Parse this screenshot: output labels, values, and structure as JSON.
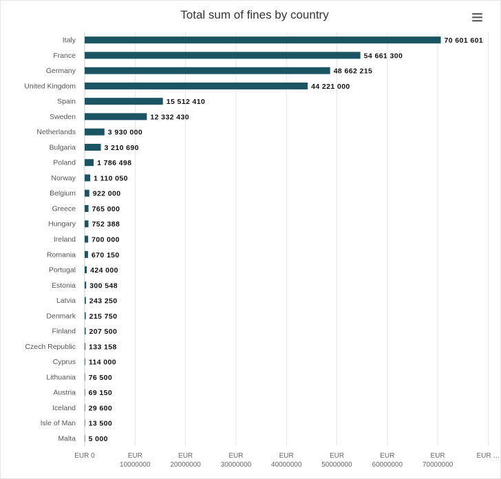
{
  "chart_data": {
    "type": "bar",
    "orientation": "horizontal",
    "title": "Total sum of fines by country",
    "categories": [
      "Italy",
      "France",
      "Germany",
      "United Kingdom",
      "Spain",
      "Sweden",
      "Netherlands",
      "Bulgaria",
      "Poland",
      "Norway",
      "Belgium",
      "Greece",
      "Hungary",
      "Ireland",
      "Romania",
      "Portugal",
      "Estonia",
      "Latvia",
      "Denmark",
      "Finland",
      "Czech Republic",
      "Cyprus",
      "Lithuania",
      "Austria",
      "Iceland",
      "Isle of Man",
      "Malta"
    ],
    "values": [
      70601601,
      54661300,
      48662215,
      44221000,
      15512410,
      12332430,
      3930000,
      3210690,
      1786498,
      1110050,
      922000,
      765000,
      752388,
      700000,
      670150,
      424000,
      300548,
      243250,
      215750,
      207500,
      133158,
      114000,
      76500,
      69150,
      29600,
      13500,
      5000
    ],
    "value_labels": [
      "70 601 601",
      "54 661 300",
      "48 662 215",
      "44 221 000",
      "15 512 410",
      "12 332 430",
      "3 930 000",
      "3 210 690",
      "1 786 498",
      "1 110 050",
      "922 000",
      "765 000",
      "752 388",
      "700 000",
      "670 150",
      "424 000",
      "300 548",
      "243 250",
      "215 750",
      "207 500",
      "133 158",
      "114 000",
      "76 500",
      "69 150",
      "29 600",
      "13 500",
      "5 000"
    ],
    "x_ticks": [
      {
        "value": 0,
        "line1": "EUR 0",
        "line2": ""
      },
      {
        "value": 10000000,
        "line1": "EUR",
        "line2": "10000000"
      },
      {
        "value": 20000000,
        "line1": "EUR",
        "line2": "20000000"
      },
      {
        "value": 30000000,
        "line1": "EUR",
        "line2": "30000000"
      },
      {
        "value": 40000000,
        "line1": "EUR",
        "line2": "40000000"
      },
      {
        "value": 50000000,
        "line1": "EUR",
        "line2": "50000000"
      },
      {
        "value": 60000000,
        "line1": "EUR",
        "line2": "60000000"
      },
      {
        "value": 70000000,
        "line1": "EUR",
        "line2": "70000000"
      },
      {
        "value": 80000000,
        "line1": "EUR …",
        "line2": ""
      }
    ],
    "xlim": [
      0,
      80000000
    ],
    "bar_color": "#1b5563",
    "grid": true,
    "legend": "none"
  },
  "menu_icon": "hamburger-menu-icon"
}
